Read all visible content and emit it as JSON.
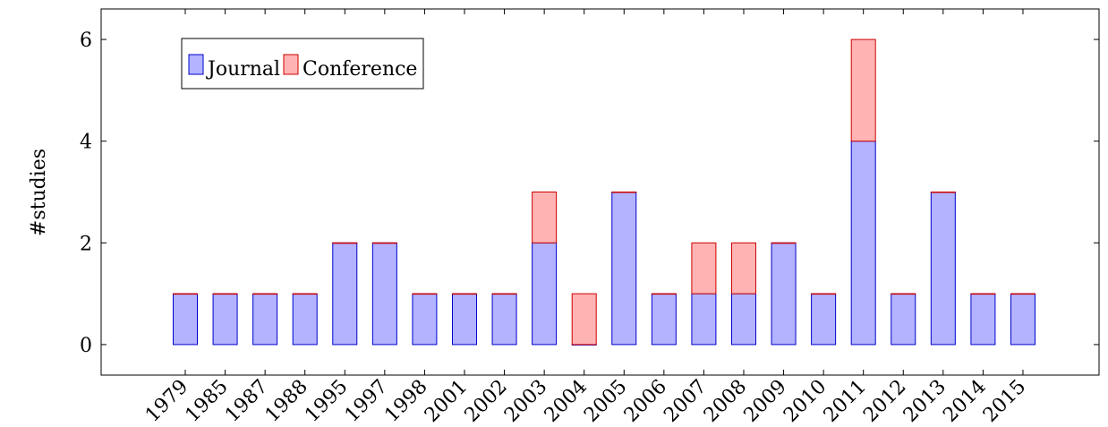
{
  "chart_data": {
    "type": "bar",
    "stacked": true,
    "categories": [
      "1979",
      "1985",
      "1987",
      "1988",
      "1995",
      "1997",
      "1998",
      "2001",
      "2002",
      "2003",
      "2004",
      "2005",
      "2006",
      "2007",
      "2008",
      "2009",
      "2010",
      "2011",
      "2012",
      "2013",
      "2014",
      "2015"
    ],
    "series": [
      {
        "name": "Journal",
        "values": [
          1,
          1,
          1,
          1,
          2,
          2,
          1,
          1,
          1,
          2,
          0,
          3,
          1,
          1,
          1,
          2,
          1,
          4,
          1,
          3,
          1,
          1
        ],
        "fill": "#b3b3ff",
        "stroke": "#0000cc"
      },
      {
        "name": "Conference",
        "values": [
          0,
          0,
          0,
          0,
          0,
          0,
          0,
          0,
          0,
          1,
          1,
          0,
          0,
          1,
          1,
          0,
          0,
          2,
          0,
          0,
          0,
          0
        ],
        "fill": "#ffb3b3",
        "stroke": "#cc0000"
      }
    ],
    "title": "",
    "xlabel": "",
    "ylabel": "#studies",
    "ylim": [
      -0.6,
      6.6
    ],
    "yticks": [
      0,
      2,
      4,
      6
    ],
    "grid": false,
    "legend_position": "top-left"
  }
}
